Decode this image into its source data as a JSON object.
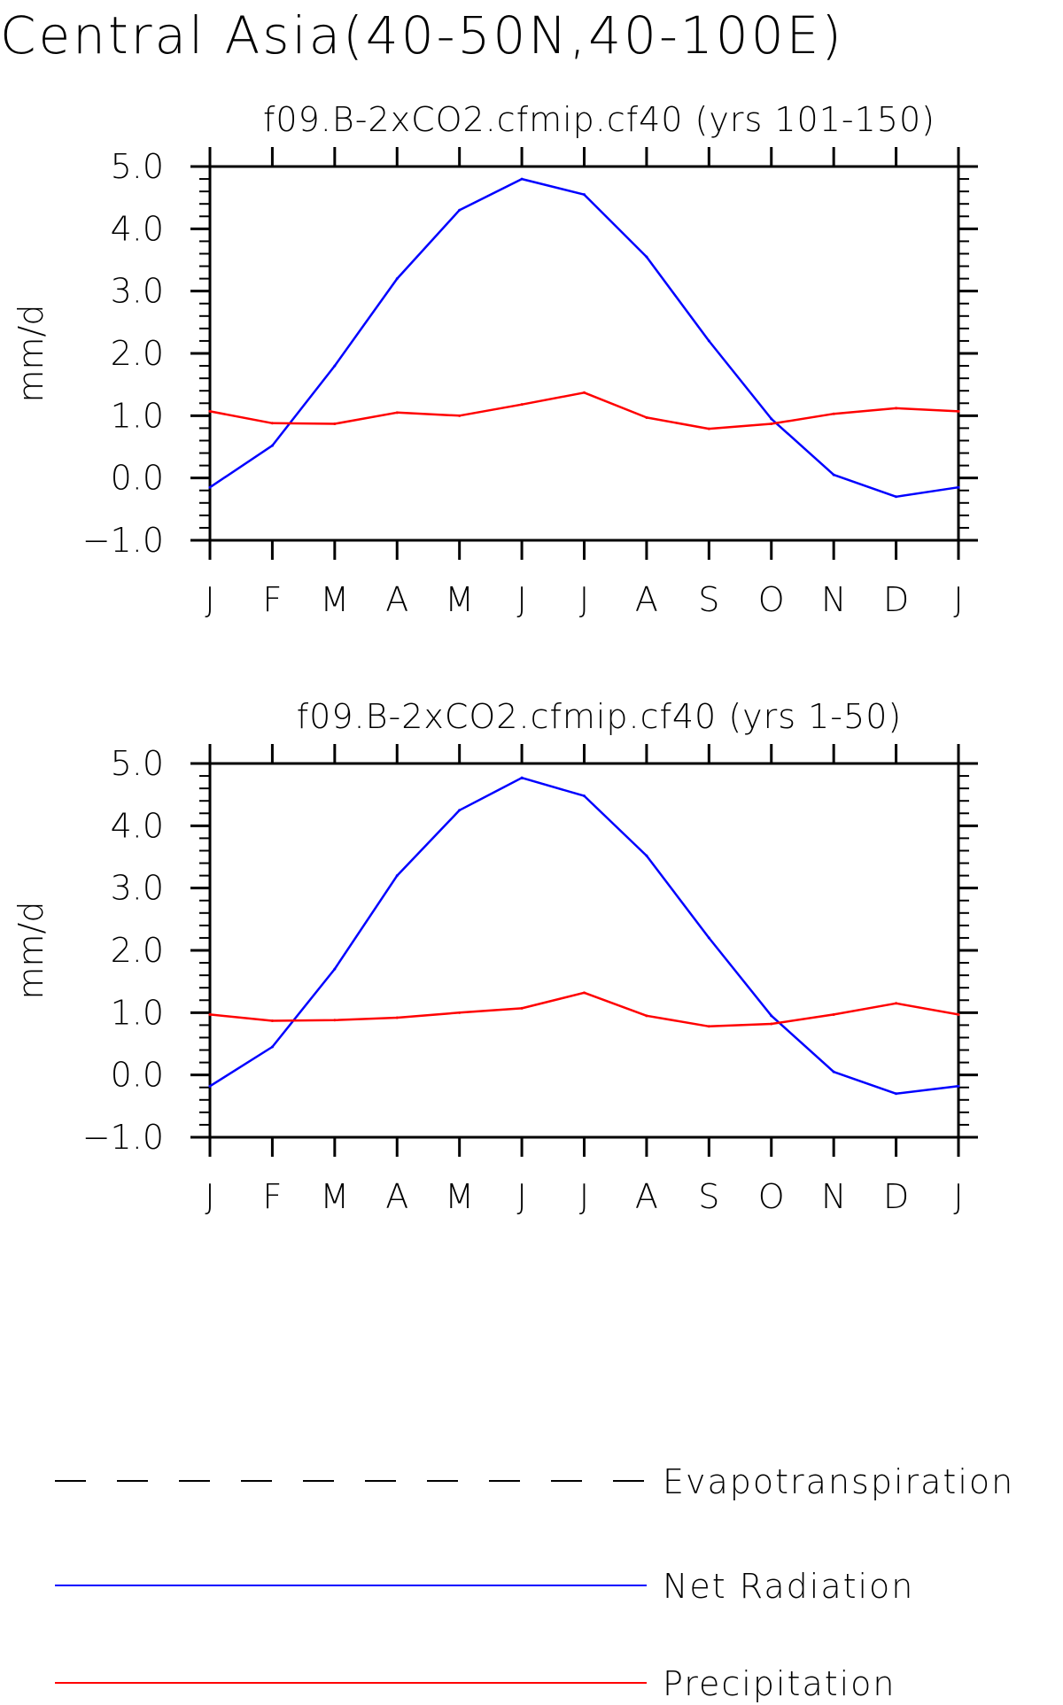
{
  "title": "Central Asia(40-50N,40-100E)",
  "legend": [
    {
      "name": "Evapotranspiration",
      "color": "#000000",
      "style": "dashed"
    },
    {
      "name": "Net Radiation",
      "color": "#0000ff",
      "style": "solid"
    },
    {
      "name": "Precipitation",
      "color": "#ff0000",
      "style": "solid"
    }
  ],
  "chart_data": [
    {
      "type": "line",
      "title": "f09.B-2xCO2.cfmip.cf40 (yrs 101-150)",
      "ylabel": "mm/d",
      "xlabel": "",
      "categories": [
        "J",
        "F",
        "M",
        "A",
        "M",
        "J",
        "J",
        "A",
        "S",
        "O",
        "N",
        "D",
        "J"
      ],
      "ylim": [
        -1.0,
        5.0
      ],
      "yticks": [
        "5.0",
        "4.0",
        "3.0",
        "2.0",
        "1.0",
        "0.0",
        "-1.0"
      ],
      "grid": false,
      "series": [
        {
          "name": "Net Radiation",
          "color": "#0000ff",
          "values": [
            -0.15,
            0.52,
            1.8,
            3.2,
            4.3,
            4.8,
            4.55,
            3.55,
            2.2,
            0.95,
            0.05,
            -0.3,
            -0.15
          ]
        },
        {
          "name": "Precipitation",
          "color": "#ff0000",
          "values": [
            1.07,
            0.88,
            0.87,
            1.05,
            1.0,
            1.18,
            1.37,
            0.97,
            0.79,
            0.87,
            1.03,
            1.12,
            1.07
          ]
        }
      ]
    },
    {
      "type": "line",
      "title": "f09.B-2xCO2.cfmip.cf40 (yrs 1-50)",
      "ylabel": "mm/d",
      "xlabel": "",
      "categories": [
        "J",
        "F",
        "M",
        "A",
        "M",
        "J",
        "J",
        "A",
        "S",
        "O",
        "N",
        "D",
        "J"
      ],
      "ylim": [
        -1.0,
        5.0
      ],
      "yticks": [
        "5.0",
        "4.0",
        "3.0",
        "2.0",
        "1.0",
        "0.0",
        "-1.0"
      ],
      "grid": false,
      "series": [
        {
          "name": "Net Radiation",
          "color": "#0000ff",
          "values": [
            -0.18,
            0.45,
            1.7,
            3.2,
            4.25,
            4.77,
            4.48,
            3.52,
            2.2,
            0.95,
            0.05,
            -0.3,
            -0.18
          ]
        },
        {
          "name": "Precipitation",
          "color": "#ff0000",
          "values": [
            0.97,
            0.87,
            0.88,
            0.92,
            1.0,
            1.07,
            1.32,
            0.95,
            0.78,
            0.82,
            0.97,
            1.15,
            0.97
          ]
        }
      ]
    }
  ]
}
